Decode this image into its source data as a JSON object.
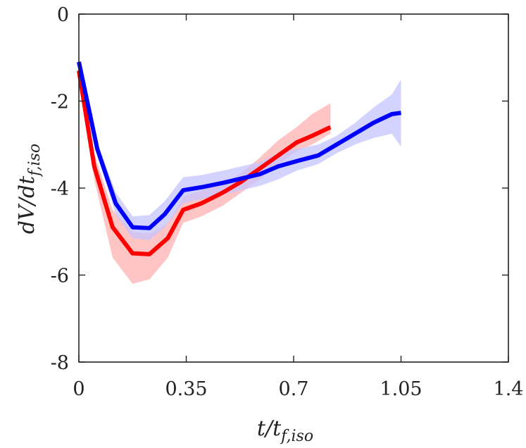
{
  "chart_data": {
    "type": "line",
    "xlabel": {
      "main": "t/t",
      "sub": "f,iso"
    },
    "ylabel": {
      "main": "dV/dt",
      "sub": "f,iso"
    },
    "xlim": [
      0,
      1.4
    ],
    "ylim": [
      -8,
      0
    ],
    "xticks": [
      0,
      0.35,
      0.7,
      1.05,
      1.4
    ],
    "yticks": [
      0,
      -2,
      -4,
      -6,
      -8
    ],
    "xtick_labels": [
      "0",
      "0.35",
      "0.7",
      "1.05",
      "1.4"
    ],
    "ytick_labels": [
      "0",
      "-2",
      "-4",
      "-6",
      "-8"
    ],
    "grid": false,
    "series": [
      {
        "name": "red",
        "color": "#ff0000",
        "band_color": "#ffb0b0",
        "x": [
          0,
          0.05,
          0.11,
          0.175,
          0.23,
          0.29,
          0.34,
          0.4,
          0.47,
          0.53,
          0.59,
          0.65,
          0.71,
          0.76,
          0.82
        ],
        "y": [
          -1.3,
          -3.5,
          -4.9,
          -5.5,
          -5.52,
          -5.15,
          -4.5,
          -4.35,
          -4.1,
          -3.85,
          -3.55,
          -3.25,
          -2.95,
          -2.8,
          -2.6
        ],
        "lower": [
          -1.45,
          -3.8,
          -5.6,
          -6.2,
          -6.1,
          -5.6,
          -4.8,
          -4.65,
          -4.4,
          -4.1,
          -3.8,
          -3.45,
          -3.15,
          -3.0,
          -2.75
        ],
        "upper": [
          -1.15,
          -3.2,
          -4.5,
          -5.0,
          -5.05,
          -4.8,
          -4.2,
          -4.05,
          -3.9,
          -3.65,
          -3.3,
          -2.9,
          -2.6,
          -2.3,
          -2.05
        ]
      },
      {
        "name": "blue",
        "color": "#0000ff",
        "band_color": "#c4c4ff",
        "x": [
          0,
          0.06,
          0.12,
          0.175,
          0.23,
          0.28,
          0.34,
          0.4,
          0.47,
          0.53,
          0.59,
          0.65,
          0.71,
          0.78,
          0.84,
          0.9,
          0.96,
          1.02,
          1.05
        ],
        "y": [
          -1.1,
          -3.1,
          -4.35,
          -4.9,
          -4.92,
          -4.6,
          -4.05,
          -3.98,
          -3.88,
          -3.78,
          -3.68,
          -3.5,
          -3.38,
          -3.25,
          -3.0,
          -2.75,
          -2.5,
          -2.3,
          -2.27
        ],
        "lower": [
          -1.15,
          -3.25,
          -4.6,
          -5.15,
          -5.2,
          -4.9,
          -4.35,
          -4.25,
          -4.15,
          -4.05,
          -3.95,
          -3.8,
          -3.6,
          -3.45,
          -3.2,
          -3.0,
          -2.85,
          -2.75,
          -3.05
        ],
        "upper": [
          -1.05,
          -2.95,
          -4.1,
          -4.65,
          -4.62,
          -4.3,
          -3.75,
          -3.7,
          -3.6,
          -3.5,
          -3.4,
          -3.2,
          -3.1,
          -3.0,
          -2.8,
          -2.5,
          -2.15,
          -1.85,
          -1.5
        ]
      }
    ]
  }
}
